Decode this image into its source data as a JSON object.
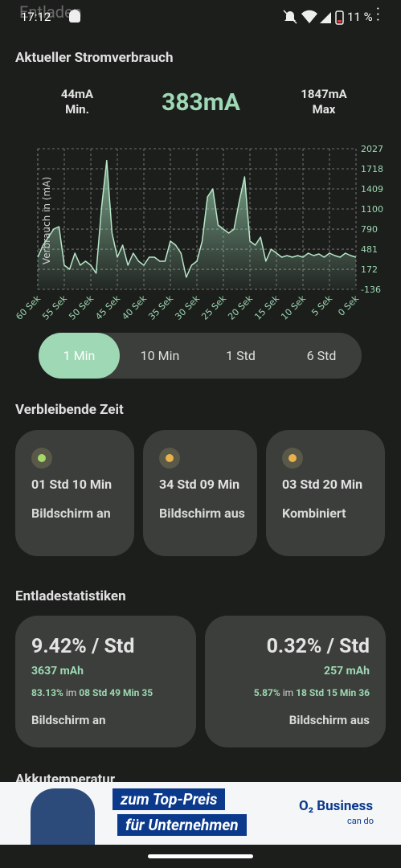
{
  "status_bar": {
    "time": "17:12",
    "battery": "11 %"
  },
  "app_title": "Entladen",
  "current": {
    "heading": "Aktueller Stromverbrauch",
    "min_value": "44mA",
    "min_label": "Min.",
    "now": "383mA",
    "max_value": "1847mA",
    "max_label": "Max"
  },
  "chart_data": {
    "type": "line",
    "y_label": "Verbrauch in (mA)",
    "color": "#b8e6c8",
    "grid": true,
    "categories": [
      "60 Sek",
      null,
      null,
      null,
      null,
      "55 Sek",
      null,
      null,
      null,
      null,
      "50 Sek",
      null,
      null,
      null,
      null,
      "45 Sek",
      null,
      null,
      null,
      null,
      "40 Sek",
      null,
      null,
      null,
      null,
      "35 Sek",
      null,
      null,
      null,
      null,
      "30 Sek",
      null,
      null,
      null,
      null,
      "25 Sek",
      null,
      null,
      null,
      null,
      "20 Sek",
      null,
      null,
      null,
      null,
      "15 Sek",
      null,
      null,
      null,
      null,
      "10 Sek",
      null,
      null,
      null,
      null,
      "5 Sek",
      null,
      null,
      null,
      null,
      "0 Sek"
    ],
    "values": [
      358,
      544,
      667,
      790,
      828,
      235,
      173,
      420,
      235,
      297,
      235,
      111,
      1100,
      1847,
      729,
      358,
      544,
      235,
      420,
      297,
      235,
      358,
      358,
      297,
      297,
      605,
      544,
      420,
      50,
      235,
      297,
      605,
      1285,
      1409,
      853,
      790,
      729,
      790,
      1224,
      1595,
      605,
      544,
      667,
      297,
      482,
      420,
      358,
      383,
      358,
      383,
      358,
      420,
      383,
      408,
      358,
      420,
      383,
      358,
      420,
      383,
      358
    ],
    "ylim": [
      -136,
      2027
    ],
    "yticks": [
      -136,
      172,
      481,
      790,
      1100,
      1409,
      1718,
      2027
    ]
  },
  "tabs": [
    "1 Min",
    "10 Min",
    "1 Std",
    "6 Std"
  ],
  "remaining": {
    "heading": "Verbleibende Zeit",
    "cards": [
      {
        "time": "01 Std 10 Min",
        "label": "Bildschirm an"
      },
      {
        "time": "34 Std 09 Min",
        "label": "Bildschirm aus"
      },
      {
        "time": "03 Std 20 Min",
        "label": "Kombiniert"
      }
    ]
  },
  "stats": {
    "heading": "Entladestatistiken",
    "cards": [
      {
        "rate": "9.42% / Std",
        "mah": "3637 mAh",
        "percent": "83.13%",
        "joiner": " im ",
        "duration": "08 Std 49 Min 35",
        "label": "Bildschirm an"
      },
      {
        "rate": "0.32% / Std",
        "mah": "257 mAh",
        "percent": "5.87%",
        "joiner": " im ",
        "duration": "18 Std 15 Min 36",
        "label": "Bildschirm aus"
      }
    ]
  },
  "next_heading": "Akkutemperatur",
  "ad": {
    "line1": "zum Top-Preis",
    "line2": "für Unternehmen",
    "brand": "O₂ Business",
    "slogan": "can do"
  }
}
